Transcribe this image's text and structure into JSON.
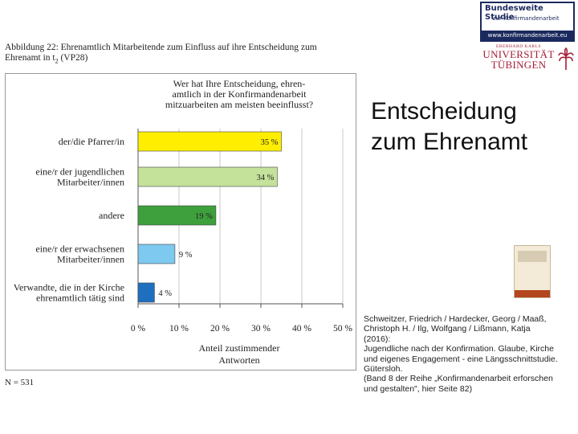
{
  "figure": {
    "caption_line1": "Abbildung 22: Ehrenamtlich Mitarbeitende zum Einfluss auf ihre Entscheidung zum",
    "caption_line2_pre": "Ehrenamt in t",
    "caption_line2_sub": "2",
    "caption_line2_post": " (VP28)",
    "n_label": "N = 531"
  },
  "chart_data": {
    "type": "bar",
    "orientation": "horizontal",
    "question": [
      "Wer hat Ihre Entscheidung, ehren-",
      "amtlich in der Konfirmandenarbeit",
      "mitzuarbeiten am meisten beeinflusst?"
    ],
    "categories": [
      [
        "der/die Pfarrer/in"
      ],
      [
        "eine/r der jugendlichen",
        "Mitarbeiter/innen"
      ],
      [
        "andere"
      ],
      [
        "eine/r der erwachsenen",
        "Mitarbeiter/innen"
      ],
      [
        "Verwandte, die in der Kirche",
        "ehrenamtlich tätig sind"
      ]
    ],
    "values": [
      35,
      34,
      19,
      9,
      4
    ],
    "value_labels": [
      "35 %",
      "34 %",
      "19 %",
      "9 %",
      "4 %"
    ],
    "colors": [
      "#ffee00",
      "#c4e29a",
      "#3ea03c",
      "#7ec9f0",
      "#1f6fc0"
    ],
    "xlim": [
      0,
      50
    ],
    "x_ticks": [
      0,
      10,
      20,
      30,
      40,
      50
    ],
    "x_tick_labels": [
      "0 %",
      "10 %",
      "20 %",
      "30 %",
      "40 %",
      "50 %"
    ],
    "xlabel": [
      "Anteil zustimmender",
      "Antworten"
    ],
    "grid": true
  },
  "logo": {
    "line1": "Bundesweite Studie",
    "line2": "zur Konfirmandenarbeit",
    "url": "www.konfirmandenarbeit.eu"
  },
  "university": {
    "small": "EBERHARD KARLS",
    "name1": "UNIVERSITÄT",
    "name2": "TÜBINGEN"
  },
  "slide": {
    "title_line1": "Entscheidung",
    "title_line2": "zum Ehrenamt"
  },
  "citation": [
    "Schweitzer, Friedrich / Hardecker, Georg / Maaß,",
    "Christoph H. / Ilg, Wolfgang / Lißmann, Katja",
    "(2016):",
    "Jugendliche nach der Konfirmation. Glaube, Kirche",
    "und eigenes Engagement - eine Längsschnittstudie.",
    "Gütersloh.",
    "(Band 8 der Reihe „Konfirmandenarbeit erforschen",
    "und gestalten\", hier Seite 82)"
  ]
}
